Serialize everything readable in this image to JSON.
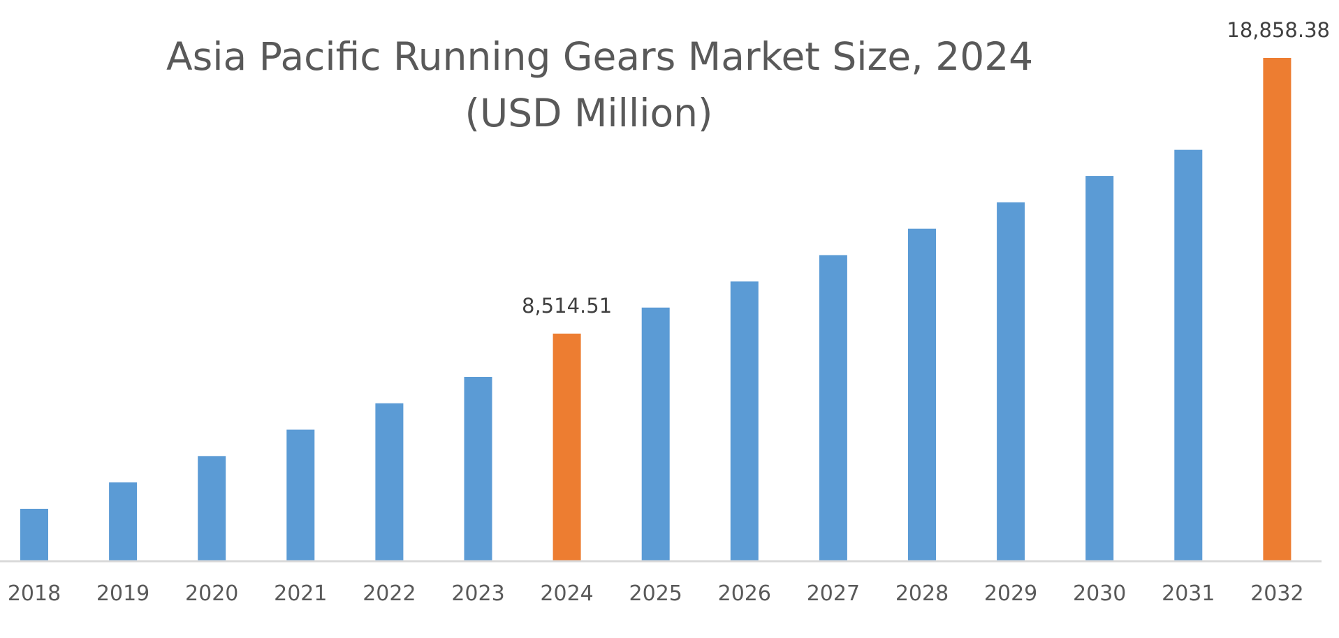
{
  "chart_data": {
    "type": "bar",
    "title": "Asia Pacific Running Gears Market Size, 2024",
    "subtitle": "(USD Million)",
    "categories": [
      "2018",
      "2019",
      "2020",
      "2021",
      "2022",
      "2023",
      "2024",
      "2025",
      "2026",
      "2027",
      "2028",
      "2029",
      "2030",
      "2031",
      "2032"
    ],
    "values": [
      1940,
      2930,
      3920,
      4910,
      5900,
      6890,
      8514.51,
      9490,
      10470,
      11460,
      12450,
      13440,
      14430,
      15410,
      18858.38
    ],
    "data_labels": [
      {
        "category": "2024",
        "text": "8,514.51"
      },
      {
        "category": "2032",
        "text": "18,858.38"
      }
    ],
    "highlight_categories": [
      "2024",
      "2032"
    ],
    "colors": {
      "bar": "#5B9BD5",
      "highlight": "#ED7D31",
      "axis": "#D9D9D9"
    },
    "xlabel": "",
    "ylabel": "",
    "ylim": [
      0,
      18858.38
    ],
    "grid": false,
    "legend": "none"
  }
}
